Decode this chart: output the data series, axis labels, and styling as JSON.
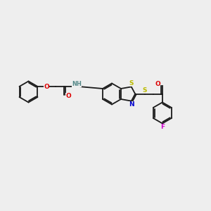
{
  "bg_color": "#eeeeee",
  "bond_color": "#1a1a1a",
  "atom_colors": {
    "O": "#dd0000",
    "N": "#0000cc",
    "S": "#bbbb00",
    "F": "#cc00cc",
    "H": "#558888"
  },
  "lw": 1.3,
  "dbo": 0.055,
  "fs": 6.5
}
